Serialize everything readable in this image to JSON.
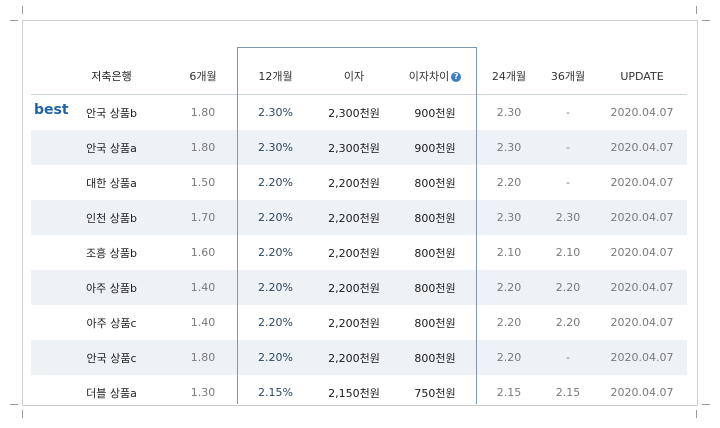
{
  "table": {
    "headers": {
      "bank": "저축은행",
      "m6": "6개월",
      "m12": "12개월",
      "interest": "이자",
      "difference": "이자차이",
      "m24": "24개월",
      "m36": "36개월",
      "update": "UPDATE"
    },
    "best_label": "best",
    "rows": [
      {
        "bank": "안국 상품b",
        "m6": "1.80",
        "m12": "2.30%",
        "interest": "2,300천원",
        "difference": "900천원",
        "m24": "2.30",
        "m36": "-",
        "update": "2020.04.07"
      },
      {
        "bank": "안국 상품a",
        "m6": "1.80",
        "m12": "2.30%",
        "interest": "2,300천원",
        "difference": "900천원",
        "m24": "2.30",
        "m36": "-",
        "update": "2020.04.07"
      },
      {
        "bank": "대한 상품a",
        "m6": "1.50",
        "m12": "2.20%",
        "interest": "2,200천원",
        "difference": "800천원",
        "m24": "2.20",
        "m36": "-",
        "update": "2020.04.07"
      },
      {
        "bank": "인천 상품b",
        "m6": "1.70",
        "m12": "2.20%",
        "interest": "2,200천원",
        "difference": "800천원",
        "m24": "2.30",
        "m36": "2.30",
        "update": "2020.04.07"
      },
      {
        "bank": "조흥 상품b",
        "m6": "1.60",
        "m12": "2.20%",
        "interest": "2,200천원",
        "difference": "800천원",
        "m24": "2.10",
        "m36": "2.10",
        "update": "2020.04.07"
      },
      {
        "bank": "아주 상품b",
        "m6": "1.40",
        "m12": "2.20%",
        "interest": "2,200천원",
        "difference": "800천원",
        "m24": "2.20",
        "m36": "2.20",
        "update": "2020.04.07"
      },
      {
        "bank": "아주 상품c",
        "m6": "1.40",
        "m12": "2.20%",
        "interest": "2,200천원",
        "difference": "800천원",
        "m24": "2.20",
        "m36": "2.20",
        "update": "2020.04.07"
      },
      {
        "bank": "안국 상품c",
        "m6": "1.80",
        "m12": "2.20%",
        "interest": "2,200천원",
        "difference": "800천원",
        "m24": "2.20",
        "m36": "-",
        "update": "2020.04.07"
      },
      {
        "bank": "더블 상품a",
        "m6": "1.30",
        "m12": "2.15%",
        "interest": "2,150천원",
        "difference": "750천원",
        "m24": "2.15",
        "m36": "2.15",
        "update": "2020.04.07"
      }
    ]
  },
  "icons": {
    "info": "question-circle-icon"
  },
  "colors": {
    "accent": "#1f64a8",
    "highlight_border": "#7b98b3",
    "stripe": "#eef2f6"
  }
}
